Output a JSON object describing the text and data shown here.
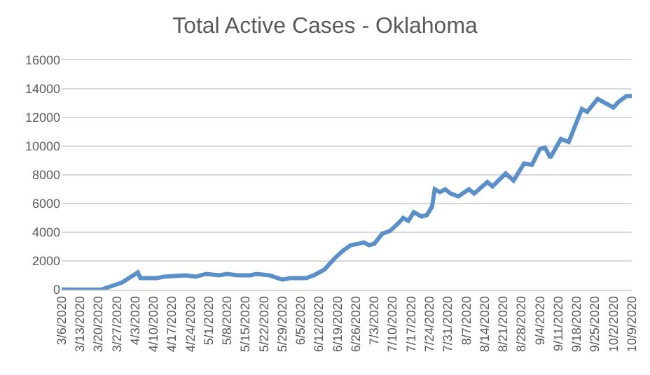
{
  "chart_data": {
    "type": "line",
    "title": "Total Active Cases - Oklahoma",
    "x": [
      "2020-03-06",
      "2020-03-21",
      "2020-03-29",
      "2020-04-04",
      "2020-04-05",
      "2020-04-11",
      "2020-04-14",
      "2020-04-22",
      "2020-04-26",
      "2020-04-30",
      "2020-05-05",
      "2020-05-08",
      "2020-05-12",
      "2020-05-17",
      "2020-05-19",
      "2020-05-24",
      "2020-05-29",
      "2020-06-01",
      "2020-06-07",
      "2020-06-10",
      "2020-06-14",
      "2020-06-18",
      "2020-06-21",
      "2020-06-24",
      "2020-06-27",
      "2020-06-29",
      "2020-07-01",
      "2020-07-03",
      "2020-07-06",
      "2020-07-09",
      "2020-07-12",
      "2020-07-14",
      "2020-07-16",
      "2020-07-18",
      "2020-07-21",
      "2020-07-23",
      "2020-07-25",
      "2020-07-26",
      "2020-07-28",
      "2020-07-30",
      "2020-08-01",
      "2020-08-04",
      "2020-08-08",
      "2020-08-10",
      "2020-08-15",
      "2020-08-17",
      "2020-08-22",
      "2020-08-25",
      "2020-08-29",
      "2020-09-01",
      "2020-09-04",
      "2020-09-06",
      "2020-09-08",
      "2020-09-12",
      "2020-09-15",
      "2020-09-20",
      "2020-09-22",
      "2020-09-26",
      "2020-10-02",
      "2020-10-04",
      "2020-10-07",
      "2020-10-09"
    ],
    "series": [
      {
        "color": "#5b8fc7",
        "values": [
          0,
          0,
          500,
          1200,
          800,
          800,
          900,
          1000,
          900,
          1100,
          1000,
          1100,
          1000,
          1000,
          1100,
          1000,
          700,
          800,
          800,
          1000,
          1400,
          2200,
          2700,
          3100,
          3200,
          3300,
          3100,
          3200,
          3900,
          4100,
          4600,
          5000,
          4800,
          5400,
          5100,
          5200,
          5800,
          7000,
          6800,
          7000,
          6700,
          6500,
          7000,
          6700,
          7500,
          7200,
          8100,
          7600,
          8800,
          8700,
          9800,
          9900,
          9200,
          10500,
          10300,
          12600,
          12400,
          13300,
          12700,
          13100,
          13500,
          13500
        ]
      }
    ],
    "xlim": [
      "2020-03-06",
      "2020-10-09"
    ],
    "xticks": [
      {
        "value": "2020-03-06",
        "label": "3/6/2020"
      },
      {
        "value": "2020-03-13",
        "label": "3/13/2020"
      },
      {
        "value": "2020-03-20",
        "label": "3/20/2020"
      },
      {
        "value": "2020-03-27",
        "label": "3/27/2020"
      },
      {
        "value": "2020-04-03",
        "label": "4/3/2020"
      },
      {
        "value": "2020-04-10",
        "label": "4/10/2020"
      },
      {
        "value": "2020-04-17",
        "label": "4/17/2020"
      },
      {
        "value": "2020-04-24",
        "label": "4/24/2020"
      },
      {
        "value": "2020-05-01",
        "label": "5/1/2020"
      },
      {
        "value": "2020-05-08",
        "label": "5/8/2020"
      },
      {
        "value": "2020-05-15",
        "label": "5/15/2020"
      },
      {
        "value": "2020-05-22",
        "label": "5/22/2020"
      },
      {
        "value": "2020-05-29",
        "label": "5/29/2020"
      },
      {
        "value": "2020-06-05",
        "label": "6/5/2020"
      },
      {
        "value": "2020-06-12",
        "label": "6/12/2020"
      },
      {
        "value": "2020-06-19",
        "label": "6/19/2020"
      },
      {
        "value": "2020-06-26",
        "label": "6/26/2020"
      },
      {
        "value": "2020-07-03",
        "label": "7/3/2020"
      },
      {
        "value": "2020-07-10",
        "label": "7/10/2020"
      },
      {
        "value": "2020-07-17",
        "label": "7/17/2020"
      },
      {
        "value": "2020-07-24",
        "label": "7/24/2020"
      },
      {
        "value": "2020-07-31",
        "label": "7/31/2020"
      },
      {
        "value": "2020-08-07",
        "label": "8/7/2020"
      },
      {
        "value": "2020-08-14",
        "label": "8/14/2020"
      },
      {
        "value": "2020-08-21",
        "label": "8/21/2020"
      },
      {
        "value": "2020-08-28",
        "label": "8/28/2020"
      },
      {
        "value": "2020-09-04",
        "label": "9/4/2020"
      },
      {
        "value": "2020-09-11",
        "label": "9/11/2020"
      },
      {
        "value": "2020-09-18",
        "label": "9/18/2020"
      },
      {
        "value": "2020-09-25",
        "label": "9/25/2020"
      },
      {
        "value": "2020-10-02",
        "label": "10/2/2020"
      },
      {
        "value": "2020-10-09",
        "label": "10/9/2020"
      }
    ],
    "ylim": [
      0,
      16000
    ],
    "yticks": [
      0,
      2000,
      4000,
      6000,
      8000,
      10000,
      12000,
      14000,
      16000
    ],
    "grid": "y",
    "marker": "none",
    "line_style": "solid"
  }
}
